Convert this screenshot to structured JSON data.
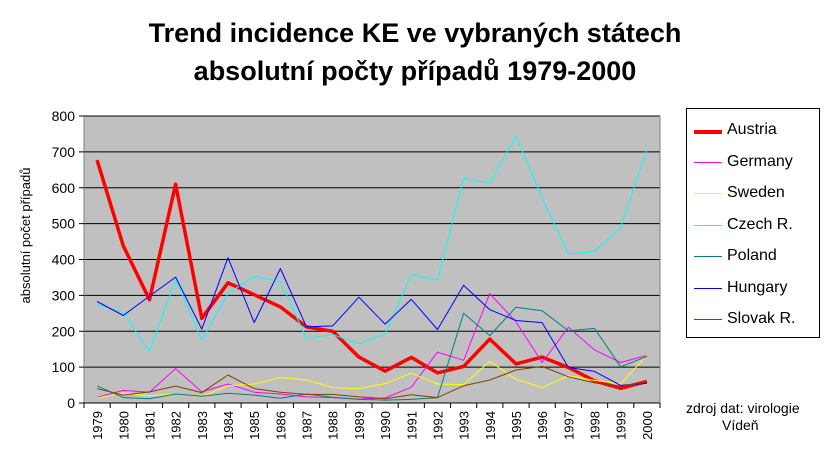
{
  "chart_data": {
    "type": "line",
    "title": "Trend incidence KE ve vybraných státech",
    "subtitle": "absolutní počty případů 1979-2000",
    "ylabel": "absolutní počet případů",
    "xlabel": "",
    "ylim": [
      0,
      800
    ],
    "yticks": [
      0,
      100,
      200,
      300,
      400,
      500,
      600,
      700,
      800
    ],
    "grid": true,
    "legend_position": "right",
    "plot_background": "#c0c0c0",
    "x": [
      "1979",
      "1980",
      "1981",
      "1982",
      "1983",
      "1984",
      "1985",
      "1986",
      "1987",
      "1988",
      "1989",
      "1990",
      "1991",
      "1992",
      "1993",
      "1994",
      "1995",
      "1996",
      "1997",
      "1998",
      "1999",
      "2000"
    ],
    "series": [
      {
        "name": "Austria",
        "color": "#ff0000",
        "width": 3.5,
        "values": [
          677,
          438,
          288,
          610,
          236,
          335,
          302,
          268,
          212,
          200,
          128,
          89,
          127,
          84,
          102,
          178,
          109,
          128,
          99,
          62,
          41,
          60
        ]
      },
      {
        "name": "Germany",
        "color": "#ff00ff",
        "width": 1,
        "values": [
          16,
          35,
          30,
          96,
          31,
          53,
          30,
          25,
          17,
          15,
          11,
          14,
          44,
          142,
          119,
          305,
          226,
          113,
          211,
          148,
          113,
          133
        ]
      },
      {
        "name": "Sweden",
        "color": "#ffff00",
        "width": 1,
        "values": [
          14,
          28,
          20,
          25,
          18,
          48,
          53,
          71,
          64,
          43,
          40,
          54,
          83,
          53,
          51,
          116,
          66,
          43,
          76,
          63,
          53,
          133
        ]
      },
      {
        "name": "Czech R.",
        "color": "#00ffff",
        "width": 1,
        "values": [
          275,
          252,
          143,
          345,
          175,
          305,
          353,
          338,
          180,
          191,
          165,
          193,
          358,
          343,
          626,
          613,
          744,
          571,
          415,
          422,
          490,
          707
        ]
      },
      {
        "name": "Poland",
        "color": "#008080",
        "width": 1,
        "values": [
          48,
          15,
          12,
          25,
          19,
          27,
          22,
          13,
          25,
          16,
          10,
          8,
          10,
          15,
          250,
          188,
          267,
          257,
          201,
          208,
          101,
          130
        ]
      },
      {
        "name": "Hungary",
        "color": "#0000ff",
        "width": 1,
        "values": [
          283,
          244,
          298,
          351,
          206,
          405,
          224,
          375,
          212,
          215,
          295,
          220,
          289,
          205,
          328,
          260,
          230,
          224,
          99,
          88,
          49,
          55
        ]
      },
      {
        "name": "Slovak R.",
        "color": "#804000",
        "width": 1,
        "values": [
          40,
          22,
          31,
          47,
          29,
          78,
          40,
          30,
          24,
          24,
          17,
          12,
          23,
          15,
          48,
          64,
          92,
          102,
          73,
          56,
          47,
          58
        ]
      }
    ]
  },
  "source": {
    "line1": "zdroj dat: virologie",
    "line2": "Vídeň"
  }
}
